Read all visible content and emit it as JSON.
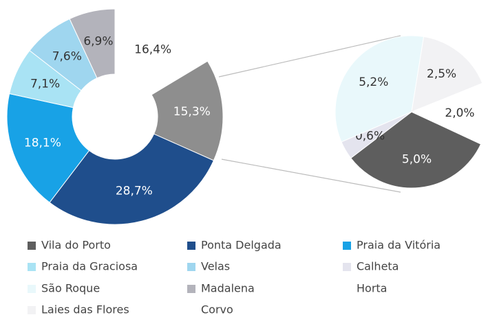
{
  "chart_data": [
    {
      "type": "donut",
      "categories": [
        "Horta",
        null,
        "Ponta Delgada",
        "Praia da Vitória",
        "Praia da Graciosa",
        "Velas",
        "Madalena"
      ],
      "values": [
        16.4,
        15.3,
        28.7,
        18.1,
        7.1,
        7.6,
        6.9
      ],
      "value_labels": [
        "16,4%",
        "15,3%",
        "28,7%",
        "18,1%",
        "7,1%",
        "7,6%",
        "6,9%"
      ],
      "colors": [
        "#ffffff",
        "#8e8e8e",
        "#1f4e8c",
        "#18a2e6",
        "#a9e3f4",
        "#9fd6ef",
        "#b3b3bb"
      ]
    },
    {
      "type": "pie",
      "categories": [
        "Vila do Porto",
        "Calheta",
        "São Roque",
        "Laies das Flores",
        "Corvo"
      ],
      "values": [
        5.0,
        0.6,
        5.2,
        2.5,
        2.0
      ],
      "value_labels": [
        "5,0%",
        "0,6%",
        "5,2%",
        "2,5%",
        "2,0%"
      ],
      "colors": [
        "#5e5e5e",
        "#e4e4ee",
        "#e9f8fb",
        "#f2f2f4",
        "#ffffff"
      ]
    }
  ]
}
